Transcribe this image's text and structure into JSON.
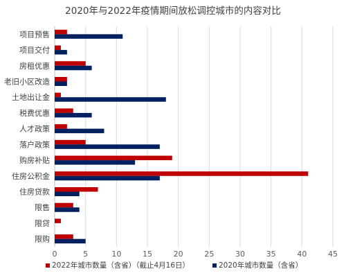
{
  "chart_data": {
    "type": "bar",
    "orientation": "horizontal",
    "title": "2020年与2022年疫情期间放松调控城市的内容对比",
    "xlabel": "",
    "ylabel": "",
    "xlim": [
      0,
      45
    ],
    "x_ticks": [
      0,
      5,
      10,
      15,
      20,
      25,
      30,
      35,
      40,
      45
    ],
    "grid": true,
    "legend_position": "bottom",
    "categories": [
      "项目预售",
      "项目交付",
      "房租优惠",
      "老旧小区改造",
      "土地出让金",
      "税费优惠",
      "人才政策",
      "落户政策",
      "购房补贴",
      "住房公积金",
      "住房贷款",
      "限售",
      "限贷",
      "限购"
    ],
    "series": [
      {
        "name": "2022年城市数量（含省）（截止4月16日）",
        "color": "#c00000",
        "values": [
          2,
          1,
          5,
          2,
          1,
          3,
          2,
          5,
          19,
          41,
          7,
          3,
          1,
          3
        ]
      },
      {
        "name": "2020年城市数量（含省）",
        "color": "#002060",
        "values": [
          11,
          2,
          6,
          2,
          18,
          6,
          8,
          17,
          13,
          17,
          4,
          4,
          0,
          5
        ]
      }
    ]
  }
}
